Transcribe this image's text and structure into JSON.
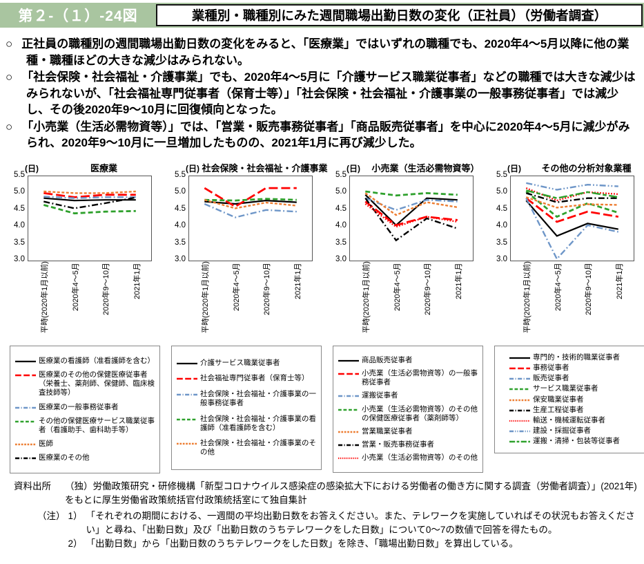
{
  "header": {
    "fig_label": "第２-（１）-24図",
    "title": "業種別・職種別にみた週間職場出勤日数の変化（正社員）（労働者調査）"
  },
  "bullet_marker": "○",
  "bullets": [
    "正社員の職種別の週間職場出勤日数の変化をみると、「医療業」ではいずれの職種でも、2020年4～5月以降に他の業種・職種ほどの大きな減少はみられない。",
    "「社会保険・社会福祉・介護事業」でも、2020年4～5月に「介護サービス職業従事者」などの職種では大きな減少はみられないが、「社会福祉専門従事者（保育士等）」「社会保険・社会福祉・介護事業の一般事務従事者」では減少し、その後2020年9～10月に回復傾向となった。",
    "「小売業（生活必需物資等）」では、「営業・販売事務従事者」「商品販売従事者」を中心に2020年4～5月に減少がみられ、2020年9～10月に一旦増加したものの、2021年1月に再び減少した。"
  ],
  "colors": {
    "black": "#000000",
    "red": "#FF0000",
    "blue": "#6E96C8",
    "green": "#2FA12D",
    "orange": "#ED7D31",
    "header_green": "#A9C5A0"
  },
  "chart_data": [
    {
      "type": "line",
      "title": "医療業",
      "unit": "(日)",
      "categories": [
        "平時(2020年1月以前)",
        "2020年4～5月",
        "2020年9～10月",
        "2021年1月"
      ],
      "ylim": [
        3.0,
        5.5
      ],
      "yticks": [
        5.5,
        5.0,
        4.5,
        4.0,
        3.5,
        3.0
      ],
      "grid": false,
      "legend_position": "below",
      "series": [
        {
          "name": "医療業の看護師（准看護師を含む）",
          "color": "#000000",
          "pattern": "solid",
          "values": [
            4.85,
            4.78,
            4.8,
            4.8
          ]
        },
        {
          "name": "医療業のその他の保健医療従事者（栄養士、薬剤師、保健師、臨床検査技師等）",
          "color": "#FF0000",
          "pattern": "long-dash",
          "values": [
            5.0,
            4.88,
            4.95,
            4.95
          ]
        },
        {
          "name": "医療業の一般事務従事者",
          "color": "#6E96C8",
          "pattern": "dash-dot",
          "values": [
            4.9,
            4.85,
            4.88,
            4.88
          ]
        },
        {
          "name": "その他の保健医療サービス職業従事者（看護助手、歯科助手等）",
          "color": "#2FA12D",
          "pattern": "dash",
          "values": [
            4.65,
            4.4,
            4.45,
            4.47
          ]
        },
        {
          "name": "医師",
          "color": "#ED7D31",
          "pattern": "short-dash",
          "values": [
            5.05,
            5.0,
            5.0,
            5.05
          ]
        },
        {
          "name": "医療業のその他",
          "color": "#000000",
          "pattern": "dash-dot",
          "values": [
            4.75,
            4.55,
            4.7,
            4.87
          ]
        }
      ]
    },
    {
      "type": "line",
      "title": "社会保険・社会福祉・介護事業",
      "unit": "(日)",
      "categories": [
        "平時(2020年1月以前)",
        "2020年4～5月",
        "2020年9～10月",
        "2021年1月"
      ],
      "ylim": [
        3.0,
        5.5
      ],
      "yticks": [
        5.5,
        5.0,
        4.5,
        4.0,
        3.5,
        3.0
      ],
      "grid": false,
      "legend_position": "below",
      "series": [
        {
          "name": "介護サービス職業従事者",
          "color": "#000000",
          "pattern": "solid",
          "values": [
            4.75,
            4.68,
            4.78,
            4.73
          ]
        },
        {
          "name": "社会福祉専門従事者（保育士等）",
          "color": "#FF0000",
          "pattern": "long-dash",
          "values": [
            5.15,
            4.6,
            5.15,
            5.15
          ]
        },
        {
          "name": "社会保険・社会福祉・介護事業の一般事務従事者",
          "color": "#6E96C8",
          "pattern": "dash-dot",
          "values": [
            4.68,
            4.28,
            4.5,
            4.45
          ]
        },
        {
          "name": "社会保険・社会福祉・介護事業の看護師（准看護師を含む）",
          "color": "#2FA12D",
          "pattern": "dash",
          "values": [
            4.8,
            4.78,
            4.83,
            4.8
          ]
        },
        {
          "name": "社会保険・社会福祉・介護事業のその他",
          "color": "#ED7D31",
          "pattern": "short-dash",
          "values": [
            4.8,
            4.55,
            4.72,
            4.63
          ]
        }
      ]
    },
    {
      "type": "line",
      "title": "小売業（生活必需物資等）",
      "unit": "(日)",
      "categories": [
        "平時(2020年1月以前)",
        "2020年4～5月",
        "2020年9～10月",
        "2021年1月"
      ],
      "ylim": [
        3.0,
        5.5
      ],
      "yticks": [
        5.5,
        5.0,
        4.5,
        4.0,
        3.5,
        3.0
      ],
      "grid": false,
      "legend_position": "below",
      "series": [
        {
          "name": "商品販売従事者",
          "color": "#000000",
          "pattern": "solid",
          "values": [
            4.95,
            4.05,
            4.85,
            4.8
          ]
        },
        {
          "name": "小売業（生活必需物資等）の一般事務従事者",
          "color": "#FF0000",
          "pattern": "long-dash",
          "values": [
            4.75,
            4.05,
            4.3,
            4.2
          ]
        },
        {
          "name": "運搬従事者",
          "color": "#6E96C8",
          "pattern": "dash-dot",
          "values": [
            4.85,
            4.5,
            4.8,
            4.75
          ]
        },
        {
          "name": "小売業（生活必需物資等）のその他の保健医療従事者（薬剤師等）",
          "color": "#2FA12D",
          "pattern": "dash",
          "values": [
            5.05,
            4.93,
            5.0,
            4.95
          ]
        },
        {
          "name": "営業職業従事者",
          "color": "#ED7D31",
          "pattern": "short-dash",
          "values": [
            5.0,
            4.35,
            4.73,
            4.58
          ]
        },
        {
          "name": "営業・販売事務従事者",
          "color": "#000000",
          "pattern": "dash-dot",
          "values": [
            4.85,
            3.6,
            4.25,
            3.95
          ]
        },
        {
          "name": "小売業（生活必需物資等）のその他",
          "color": "#FF0000",
          "pattern": "dot",
          "values": [
            4.68,
            4.0,
            4.3,
            4.15
          ]
        }
      ]
    },
    {
      "type": "line",
      "title": "その他の分析対象業種",
      "unit": "(日)",
      "categories": [
        "平時(2020年1月以前)",
        "2020年4～5月",
        "2020年9～10月",
        "2021年1月"
      ],
      "ylim": [
        3.0,
        5.5
      ],
      "yticks": [
        5.5,
        5.0,
        4.5,
        4.0,
        3.5,
        3.0
      ],
      "grid": false,
      "legend_position": "below",
      "series": [
        {
          "name": "専門的・技術的職業従事者",
          "color": "#000000",
          "pattern": "solid",
          "values": [
            4.78,
            3.73,
            4.1,
            3.93
          ]
        },
        {
          "name": "事務従事者",
          "color": "#FF0000",
          "pattern": "long-dash",
          "values": [
            4.85,
            4.15,
            4.45,
            4.3
          ]
        },
        {
          "name": "販売従事者",
          "color": "#6E96C8",
          "pattern": "dash-dot",
          "values": [
            4.85,
            3.05,
            4.05,
            3.85
          ]
        },
        {
          "name": "サービス職業従事者",
          "color": "#2FA12D",
          "pattern": "dash",
          "values": [
            5.05,
            4.3,
            4.7,
            4.42
          ]
        },
        {
          "name": "保安職業従事者",
          "color": "#ED7D31",
          "pattern": "short-dash",
          "values": [
            4.88,
            4.57,
            4.67,
            4.65
          ]
        },
        {
          "name": "生産工程従事者",
          "color": "#000000",
          "pattern": "dash-dot",
          "values": [
            5.0,
            4.73,
            4.85,
            4.85
          ]
        },
        {
          "name": "輸送・機械運転従事者",
          "color": "#FF0000",
          "pattern": "dot",
          "values": [
            5.15,
            4.78,
            5.03,
            4.97
          ]
        },
        {
          "name": "建設・採掘従事者",
          "color": "#6E96C8",
          "pattern": "dash-dot-dot",
          "values": [
            5.3,
            5.1,
            5.25,
            5.2
          ]
        },
        {
          "name": "運搬・清掃・包装等従事者",
          "color": "#2FA12D",
          "pattern": "long-dash-dash",
          "values": [
            5.08,
            4.85,
            5.03,
            4.88
          ]
        }
      ]
    }
  ],
  "footer": {
    "source_label": "資料出所",
    "source_text": "（独）労働政策研究・研修機構「新型コロナウイルス感染症の感染拡大下における労働者の働き方に関する調査（労働者調査）」(2021年) をもとに厚生労働省政策統括官付政策統括室にて独自集計",
    "note_label": "（注）",
    "notes": [
      {
        "num": "1）",
        "text": "「それぞれの期間における、一週間の平均出勤日数をお答えください。また、テレワークを実施していればその状況もお答えください」と尋ね、「出勤日数」及び「出勤日数のうちテレワークをした日数」について0～7の数値で回答を得たもの。"
      },
      {
        "num": "2）",
        "text": "「出勤日数」から「出勤日数のうちテレワークをした日数」を除き、「職場出勤日数」を算出している。"
      }
    ]
  }
}
